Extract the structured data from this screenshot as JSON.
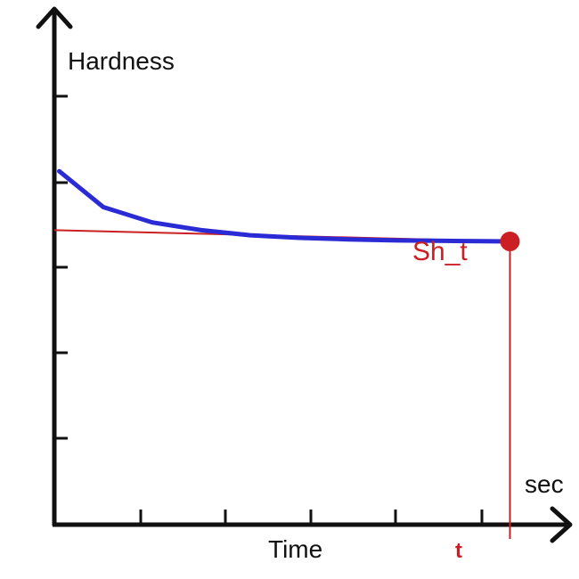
{
  "chart_data": {
    "type": "line",
    "ylabel": "Hardness",
    "xlabel": "Time",
    "x_unit_label": "sec",
    "point_label": "Sh_t",
    "t_label": "t",
    "x_range": [
      0,
      10
    ],
    "y_range": [
      0,
      10
    ],
    "grid": false,
    "series": [
      {
        "x": [
          0.1,
          1.0,
          2.0,
          3.0,
          4.0,
          5.0,
          6.0,
          7.0,
          8.0,
          9.3
        ],
        "y": [
          6.9,
          6.2,
          5.9,
          5.75,
          5.65,
          5.6,
          5.57,
          5.55,
          5.54,
          5.53
        ]
      }
    ],
    "tangent_line": {
      "x": [
        0,
        9.3
      ],
      "y": [
        5.75,
        5.53
      ]
    },
    "marker": {
      "x": 9.3,
      "y": 5.53
    }
  },
  "colors": {
    "curve": "#2b2bd6",
    "red": "#cc1f24",
    "axis": "#111111"
  }
}
